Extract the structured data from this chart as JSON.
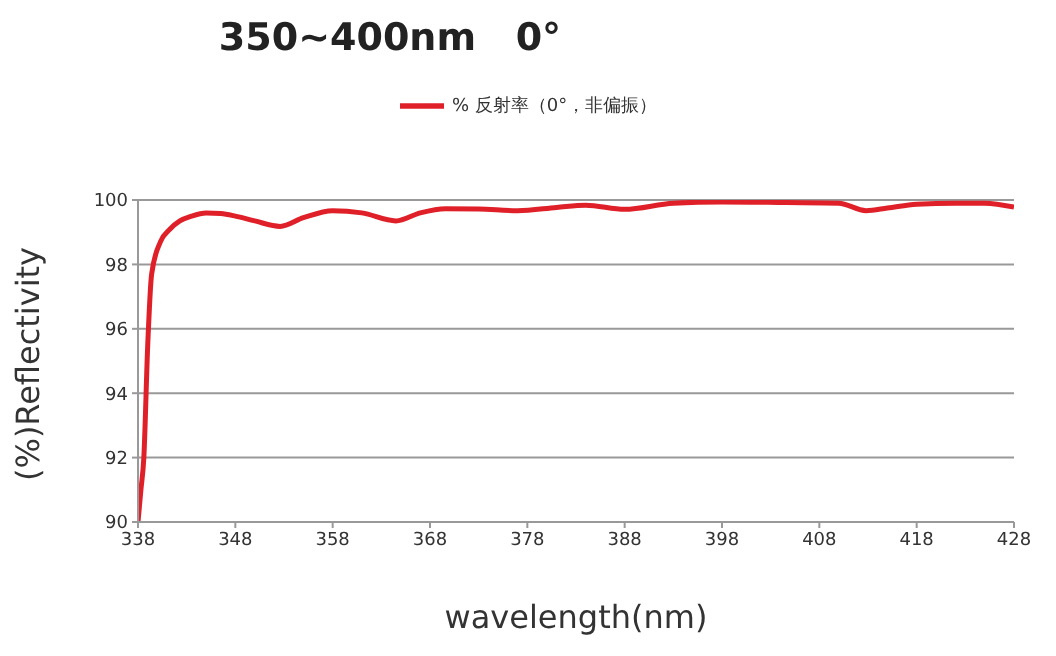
{
  "chart_data": {
    "type": "line",
    "title": "350~400nm   0°",
    "xlabel": "wavelength(nm)",
    "ylabel": "(%)Reflectivity",
    "xlim": [
      338,
      428
    ],
    "xticks": [
      338,
      348,
      358,
      368,
      378,
      388,
      398,
      408,
      418,
      428
    ],
    "ylim": [
      90,
      100
    ],
    "yticks": [
      90,
      92,
      94,
      96,
      98,
      100
    ],
    "grid": "y",
    "legend": "top",
    "marker": "none",
    "line_style": "solid",
    "series": [
      {
        "name": "% 反射率（0°，非偏振）",
        "color": "#e02028",
        "x": [
          338,
          338.3,
          338.6,
          339,
          339.4,
          340.3,
          341.3,
          342.3,
          343.5,
          345,
          346.5,
          348,
          350,
          352.6,
          355,
          358,
          361,
          364.5,
          367,
          369.6,
          373,
          377,
          381,
          384,
          388,
          393,
          398,
          404.6,
          410,
          412.8,
          415,
          418,
          422,
          425,
          428
        ],
        "values": [
          90,
          91,
          92,
          95.5,
          97.7,
          98.7,
          99.1,
          99.35,
          99.5,
          99.6,
          99.58,
          99.5,
          99.35,
          99.18,
          99.45,
          99.67,
          99.6,
          99.35,
          99.6,
          99.73,
          99.72,
          99.67,
          99.77,
          99.84,
          99.71,
          99.9,
          99.94,
          99.92,
          99.9,
          99.67,
          99.75,
          99.87,
          99.9,
          99.9,
          99.78
        ]
      }
    ]
  }
}
